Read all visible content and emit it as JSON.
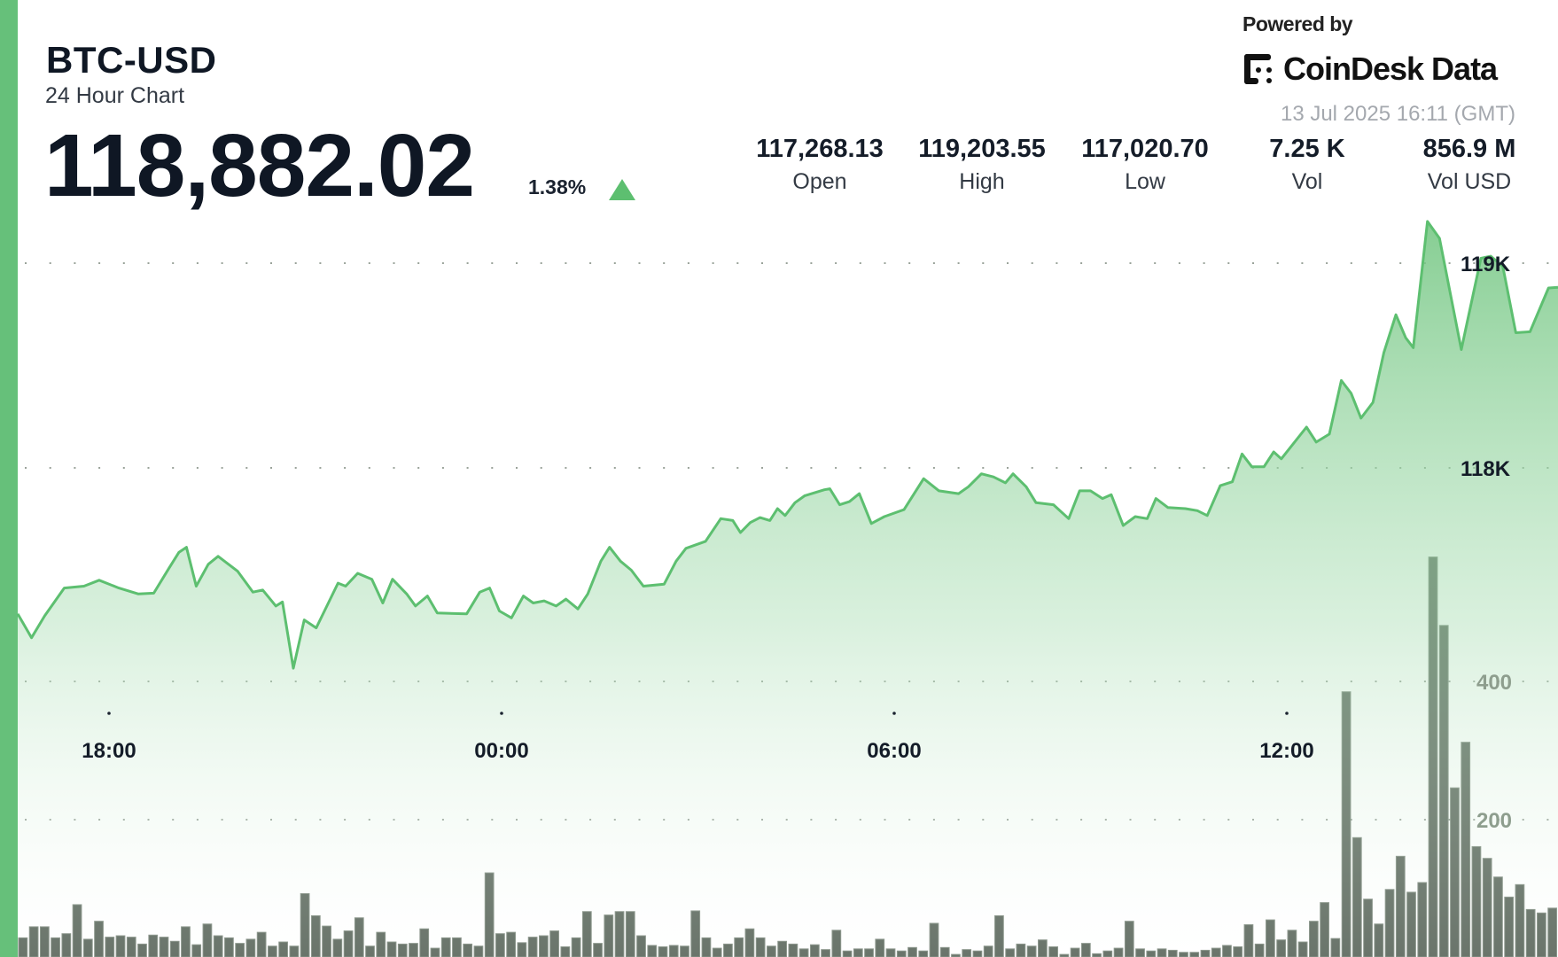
{
  "header": {
    "symbol": "BTC-USD",
    "subtitle": "24 Hour Chart",
    "price": "118,882.02",
    "change_pct": "1.38%",
    "change_direction": "up",
    "timestamp": "13 Jul 2025 16:11 (GMT)"
  },
  "branding": {
    "powered_by": "Powered by",
    "logo_text": "CoinDesk Data"
  },
  "stats": [
    {
      "value": "117,268.13",
      "label": "Open"
    },
    {
      "value": "119,203.55",
      "label": "High"
    },
    {
      "value": "117,020.70",
      "label": "Low"
    },
    {
      "value": "7.25 K",
      "label": "Vol"
    },
    {
      "value": "856.9 M",
      "label": "Vol USD"
    }
  ],
  "colors": {
    "accent": "#66c07a",
    "line": "#5dbf70",
    "volume_bar": "#59655a",
    "up": "#5dbf70"
  },
  "chart_data": {
    "type": "area",
    "price_axis": {
      "ticks": [
        118000,
        119000
      ],
      "tick_labels": [
        "118K",
        "119K"
      ],
      "range": [
        116950,
        119300
      ]
    },
    "volume_axis": {
      "ticks": [
        200,
        400
      ],
      "tick_labels": [
        "200",
        "400"
      ],
      "range": [
        0,
        600
      ]
    },
    "x_axis": {
      "tick_labels": [
        "18:00",
        "00:00",
        "06:00",
        "12:00"
      ]
    },
    "grid": "dotted horizontal",
    "price_series": {
      "times": [
        "16:36",
        "16:49",
        "17:01",
        "17:19",
        "17:37",
        "17:51",
        "18:09",
        "18:27",
        "18:41",
        "18:55",
        "19:04",
        "19:11",
        "19:20",
        "19:31",
        "19:40",
        "19:58",
        "20:12",
        "20:21",
        "20:33",
        "20:39",
        "20:49",
        "20:59",
        "21:10",
        "21:30",
        "21:37",
        "21:48",
        "22:01",
        "22:11",
        "22:20",
        "22:33",
        "22:41",
        "22:52",
        "23:01",
        "23:28",
        "23:40",
        "23:49",
        "23:58",
        "00:09",
        "00:20",
        "00:29",
        "00:39",
        "00:50",
        "00:59",
        "01:10",
        "01:19",
        "01:31",
        "01:39",
        "01:49",
        "01:59",
        "02:10",
        "02:29",
        "02:40",
        "02:49",
        "03:07",
        "03:21",
        "03:32",
        "03:39",
        "03:48",
        "03:57",
        "04:06",
        "04:13",
        "04:20",
        "04:29",
        "04:38",
        "04:56",
        "05:01",
        "05:10",
        "05:19",
        "05:28",
        "05:39",
        "05:51",
        "06:09",
        "06:27",
        "06:41",
        "06:59",
        "07:08",
        "07:20",
        "07:31",
        "07:42",
        "07:49",
        "08:01",
        "08:10",
        "08:26",
        "08:40",
        "08:50",
        "09:00",
        "09:11",
        "09:19",
        "09:30",
        "09:41",
        "09:52",
        "10:00",
        "10:11",
        "10:27",
        "10:38",
        "10:47",
        "10:59",
        "11:10",
        "11:19",
        "11:28",
        "11:39",
        "11:48",
        "11:55",
        "12:18",
        "12:27",
        "12:39",
        "12:50",
        "12:59",
        "13:08",
        "13:19",
        "13:29",
        "13:40",
        "13:49",
        "13:56",
        "14:09",
        "14:20",
        "14:40",
        "14:58",
        "15:07",
        "15:18",
        "15:30",
        "15:43",
        "16:00",
        "16:09"
      ],
      "values": [
        117287,
        117170,
        117277,
        117413,
        117422,
        117451,
        117413,
        117384,
        117388,
        117510,
        117587,
        117612,
        117422,
        117529,
        117568,
        117495,
        117393,
        117403,
        117325,
        117345,
        117021,
        117257,
        117218,
        117437,
        117422,
        117485,
        117456,
        117340,
        117456,
        117384,
        117325,
        117374,
        117291,
        117287,
        117393,
        117413,
        117301,
        117267,
        117374,
        117340,
        117350,
        117325,
        117359,
        117311,
        117384,
        117544,
        117612,
        117544,
        117500,
        117422,
        117432,
        117544,
        117607,
        117641,
        117752,
        117743,
        117684,
        117733,
        117757,
        117743,
        117801,
        117767,
        117830,
        117864,
        117893,
        117898,
        117820,
        117835,
        117874,
        117728,
        117762,
        117796,
        117947,
        117888,
        117874,
        117908,
        117971,
        117956,
        117927,
        117971,
        117908,
        117830,
        117820,
        117752,
        117888,
        117888,
        117850,
        117869,
        117718,
        117762,
        117752,
        117850,
        117806,
        117801,
        117791,
        117767,
        117913,
        117932,
        118068,
        118005,
        118005,
        118078,
        118044,
        118199,
        118126,
        118165,
        118427,
        118364,
        118243,
        118320,
        118563,
        118748,
        118636,
        118587,
        119204,
        119121,
        118578,
        119024,
        119034,
        118985,
        118660,
        118665,
        118879,
        118882
      ]
    },
    "volume_series": {
      "values": [
        29,
        45,
        45,
        29,
        35,
        77,
        27,
        53,
        30,
        32,
        30,
        20,
        33,
        30,
        24,
        45,
        19,
        49,
        32,
        29,
        21,
        27,
        37,
        17,
        23,
        17,
        93,
        61,
        46,
        27,
        39,
        58,
        17,
        37,
        23,
        20,
        21,
        42,
        14,
        29,
        29,
        20,
        17,
        123,
        35,
        37,
        22,
        30,
        32,
        39,
        16,
        29,
        67,
        21,
        62,
        67,
        67,
        32,
        18,
        16,
        18,
        17,
        68,
        29,
        14,
        20,
        29,
        42,
        29,
        17,
        24,
        20,
        13,
        19,
        12,
        40,
        10,
        13,
        13,
        27,
        13,
        10,
        15,
        10,
        50,
        15,
        5,
        12,
        10,
        17,
        61,
        13,
        20,
        17,
        26,
        16,
        5,
        14,
        21,
        6,
        10,
        14,
        53,
        13,
        10,
        13,
        11,
        8,
        8,
        11,
        14,
        18,
        16,
        48,
        20,
        55,
        26,
        40,
        23,
        53,
        80,
        28,
        385,
        174,
        85,
        49,
        99,
        147,
        95,
        109,
        580,
        481,
        246,
        312,
        161,
        144,
        117,
        88,
        106,
        70,
        65,
        72
      ]
    }
  }
}
